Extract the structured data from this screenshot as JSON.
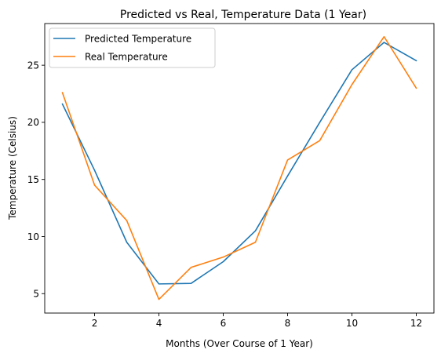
{
  "chart_data": {
    "type": "line",
    "title": "Predicted vs Real, Temperature Data (1 Year)",
    "xlabel": "Months (Over Course of 1 Year)",
    "ylabel": "Temperature (Celsius)",
    "x": [
      1,
      2,
      3,
      4,
      5,
      6,
      7,
      8,
      9,
      10,
      11,
      12
    ],
    "xlim": [
      0.45,
      12.55
    ],
    "ylim": [
      3.3,
      28.65
    ],
    "xticks": [
      2,
      4,
      6,
      8,
      10,
      12
    ],
    "yticks": [
      5,
      10,
      15,
      20,
      25
    ],
    "grid": false,
    "legend": "upper-left",
    "series": [
      {
        "name": "Predicted Temperature",
        "color": "#1f77b4",
        "values": [
          21.6,
          15.8,
          9.5,
          5.85,
          5.9,
          7.8,
          10.5,
          15.3,
          20.0,
          24.6,
          27.0,
          25.4
        ]
      },
      {
        "name": "Real Temperature",
        "color": "#ff7f0e",
        "values": [
          22.6,
          14.5,
          11.4,
          4.5,
          7.3,
          8.2,
          9.5,
          16.7,
          18.4,
          23.3,
          27.5,
          23.0
        ]
      }
    ]
  }
}
